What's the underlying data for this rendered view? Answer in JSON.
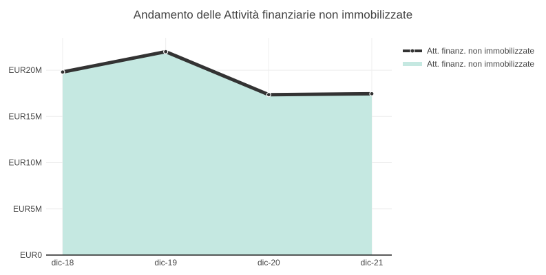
{
  "chart_data": {
    "type": "line",
    "title": "Andamento delle Attività finanziarie non immobilizzate",
    "xlabel": "",
    "ylabel": "",
    "categories": [
      "dic-18",
      "dic-19",
      "dic-20",
      "dic-21"
    ],
    "series": [
      {
        "name": "Att. finanz. non immobilizzate",
        "kind": "line",
        "values": [
          19800000,
          22000000,
          17350000,
          17450000
        ],
        "color": "#333333"
      },
      {
        "name": "Att. finanz. non immobilizzate",
        "kind": "area",
        "values": [
          19800000,
          22000000,
          17350000,
          17450000
        ],
        "color": "#c5e8e1"
      }
    ],
    "ylim": [
      0,
      23500000
    ],
    "yticks": [
      0,
      5000000,
      10000000,
      15000000,
      20000000
    ],
    "ytick_labels": [
      "EUR0",
      "EUR5M",
      "EUR10M",
      "EUR15M",
      "EUR20M"
    ],
    "grid": true,
    "legend_position": "top-right"
  }
}
